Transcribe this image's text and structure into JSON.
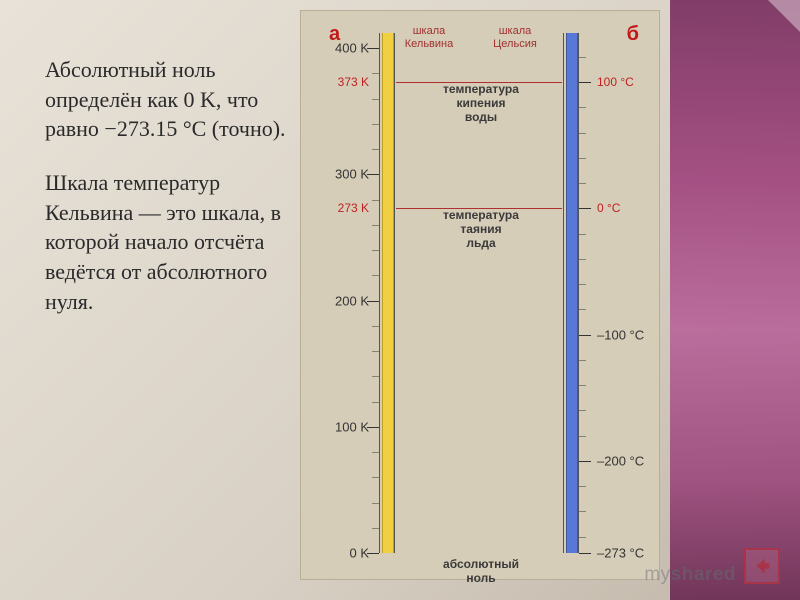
{
  "text": {
    "para1_a": "Абсолютный ноль определён как 0 K, что равно −273.15 °C (точно).",
    "para2": "Шкала температур Кельвина — это шкала, в которой начало отсчёта ведётся от абсолютного нуля."
  },
  "diagram": {
    "colA": "а",
    "colB": "б",
    "scaleK_l1": "шкала",
    "scaleK_l2": "Кельвина",
    "scaleC_l1": "шкала",
    "scaleC_l2": "Цельсия",
    "geometry": {
      "topPx": 22,
      "heightPx": 520,
      "kMin": 0,
      "kMax": 412,
      "cMin": -273,
      "cMax": 139
    },
    "kelvin_ticks": [
      {
        "v": 400,
        "label": "400 K"
      },
      {
        "v": 300,
        "label": "300 K"
      },
      {
        "v": 200,
        "label": "200 K"
      },
      {
        "v": 100,
        "label": "100 K"
      },
      {
        "v": 0,
        "label": "0 K"
      }
    ],
    "kelvin_marks": [
      {
        "v": 373,
        "label": "373 K"
      },
      {
        "v": 273,
        "label": "273 K"
      }
    ],
    "celsius_ticks": [
      {
        "v": 100,
        "label": "100 °C",
        "red": true
      },
      {
        "v": 0,
        "label": "0 °C",
        "red": true
      },
      {
        "v": -100,
        "label": "–100 °C"
      },
      {
        "v": -200,
        "label": "–200 °C"
      },
      {
        "v": -273,
        "label": "–273 °C"
      }
    ],
    "mid_labels": [
      {
        "v": 373,
        "l1": "температура",
        "l2": "кипения",
        "l3": "воды"
      },
      {
        "v": 273,
        "l1": "температура",
        "l2": "таяния",
        "l3": "льда"
      }
    ],
    "abs_zero": "абсолютный ноль",
    "kelvin_fill_top_v": 412,
    "celsius_fill_top_v": 139,
    "colors": {
      "kelvin_fill": "#f0d040",
      "celsius_fill": "#5878d8",
      "red": "#c02020",
      "tick": "#333333",
      "bg": "#d6cdb8"
    }
  },
  "watermark": {
    "a": "my",
    "b": "shared"
  },
  "nav_arrow_color": "#a8344a"
}
